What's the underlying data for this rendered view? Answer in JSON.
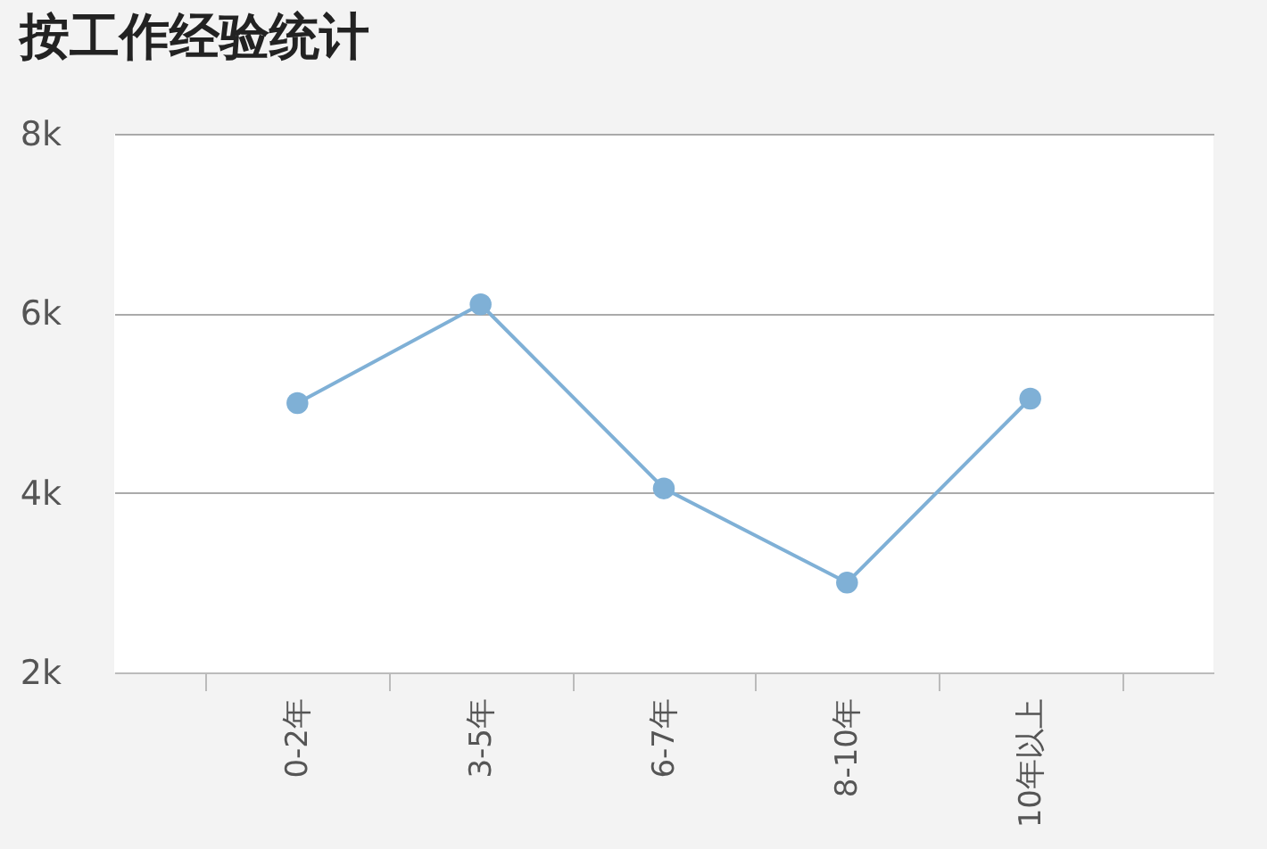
{
  "chart_data": {
    "type": "line",
    "title": "按工作经验统计",
    "categories": [
      "0-2年",
      "3-5年",
      "6-7年",
      "8-10年",
      "10年以上"
    ],
    "series": [
      {
        "color": "#7fb0d6",
        "values": [
          5000,
          6100,
          4050,
          3000,
          5050
        ]
      }
    ],
    "ylim": [
      2000,
      8000
    ],
    "yticks": [
      {
        "value": 2000,
        "label": "2k"
      },
      {
        "value": 4000,
        "label": "4k"
      },
      {
        "value": 6000,
        "label": "6k"
      },
      {
        "value": 8000,
        "label": "8k"
      }
    ],
    "grid": "y",
    "marker": "circle",
    "legend": false
  }
}
